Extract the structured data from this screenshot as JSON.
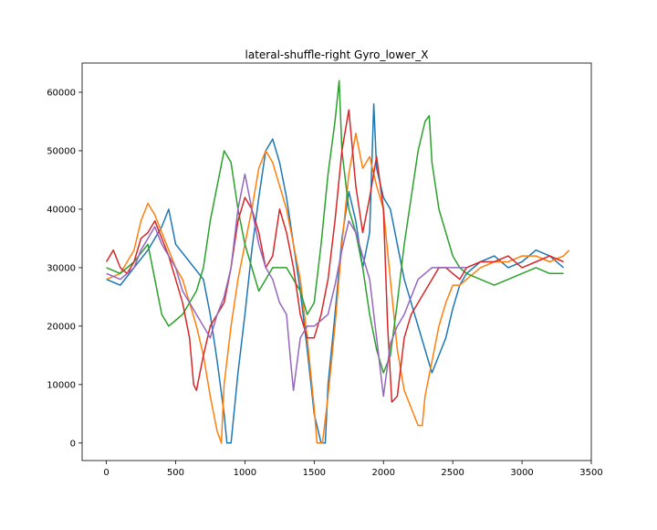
{
  "chart_data": {
    "type": "line",
    "title": "lateral-shuffle-right Gyro_lower_X",
    "xlabel": "",
    "ylabel": "",
    "xlim": [
      -175,
      3500
    ],
    "ylim": [
      -3000,
      65000
    ],
    "xticks": [
      0,
      500,
      1000,
      1500,
      2000,
      2500,
      3000,
      3500
    ],
    "yticks": [
      0,
      10000,
      20000,
      30000,
      40000,
      50000,
      60000
    ],
    "xtick_labels": [
      "0",
      "500",
      "1000",
      "1500",
      "2000",
      "2500",
      "3000",
      "3500"
    ],
    "ytick_labels": [
      "0",
      "10000",
      "20000",
      "30000",
      "40000",
      "50000",
      "60000"
    ],
    "grid": false,
    "series": [
      {
        "color": "#1f77b4",
        "x": [
          0,
          100,
          200,
          300,
          400,
          450,
          500,
          600,
          700,
          750,
          800,
          850,
          870,
          900,
          950,
          1000,
          1050,
          1100,
          1150,
          1200,
          1250,
          1300,
          1350,
          1400,
          1450,
          1500,
          1550,
          1580,
          1600,
          1650,
          1700,
          1750,
          1800,
          1850,
          1900,
          1930,
          1950,
          2000,
          2050,
          2100,
          2150,
          2200,
          2250,
          2300,
          2350,
          2400,
          2450,
          2500,
          2550,
          2600,
          2700,
          2800,
          2900,
          3000,
          3100,
          3200,
          3300
        ],
        "y": [
          28000,
          27000,
          30000,
          33000,
          37000,
          40000,
          34000,
          31000,
          28000,
          22000,
          14000,
          5000,
          0,
          0,
          12000,
          22000,
          33000,
          42000,
          50000,
          52000,
          48000,
          42000,
          34000,
          26000,
          16000,
          5000,
          0,
          0,
          10000,
          22000,
          35000,
          43000,
          38000,
          30000,
          36000,
          58000,
          47000,
          42000,
          40000,
          34000,
          28000,
          24000,
          20000,
          16000,
          12000,
          15000,
          18000,
          23000,
          27000,
          29000,
          31000,
          32000,
          30000,
          31000,
          33000,
          32000,
          30000
        ]
      },
      {
        "color": "#ff7f0e",
        "x": [
          0,
          100,
          200,
          250,
          300,
          350,
          400,
          450,
          500,
          550,
          600,
          650,
          700,
          750,
          800,
          830,
          850,
          900,
          950,
          1000,
          1050,
          1100,
          1150,
          1200,
          1250,
          1300,
          1350,
          1400,
          1450,
          1500,
          1520,
          1560,
          1600,
          1650,
          1700,
          1750,
          1800,
          1850,
          1900,
          1950,
          2000,
          2050,
          2100,
          2150,
          2200,
          2250,
          2280,
          2300,
          2350,
          2400,
          2450,
          2500,
          2550,
          2600,
          2700,
          2800,
          2900,
          3000,
          3100,
          3200,
          3300,
          3340
        ],
        "y": [
          28000,
          29000,
          33000,
          38000,
          41000,
          39000,
          36000,
          33000,
          30000,
          28000,
          24000,
          20000,
          15000,
          8000,
          2000,
          0,
          10000,
          20000,
          28000,
          34000,
          40000,
          47000,
          50000,
          48000,
          44000,
          40000,
          34000,
          28000,
          18000,
          6000,
          0,
          0,
          8000,
          20000,
          34000,
          46000,
          53000,
          47000,
          49000,
          44000,
          40000,
          28000,
          16000,
          9000,
          6000,
          3000,
          3000,
          8000,
          14000,
          20000,
          24000,
          27000,
          27000,
          28000,
          30000,
          31000,
          31000,
          32000,
          32000,
          31000,
          32000,
          33000
        ]
      },
      {
        "color": "#2ca02c",
        "x": [
          0,
          100,
          200,
          300,
          350,
          400,
          450,
          500,
          550,
          600,
          650,
          700,
          750,
          800,
          850,
          900,
          950,
          1000,
          1050,
          1100,
          1150,
          1200,
          1250,
          1300,
          1350,
          1400,
          1450,
          1500,
          1550,
          1600,
          1650,
          1680,
          1700,
          1750,
          1800,
          1850,
          1900,
          1950,
          2000,
          2050,
          2100,
          2150,
          2200,
          2250,
          2300,
          2330,
          2350,
          2400,
          2450,
          2500,
          2550,
          2600,
          2700,
          2800,
          2900,
          3000,
          3100,
          3200,
          3300
        ],
        "y": [
          30000,
          29000,
          31000,
          34000,
          28000,
          22000,
          20000,
          21000,
          22000,
          24000,
          26000,
          30000,
          38000,
          44000,
          50000,
          48000,
          40000,
          34000,
          30000,
          26000,
          28000,
          30000,
          30000,
          30000,
          28000,
          26000,
          22000,
          24000,
          34000,
          46000,
          55000,
          62000,
          50000,
          40000,
          36000,
          30000,
          22000,
          16000,
          12000,
          15000,
          24000,
          34000,
          42000,
          50000,
          55000,
          56000,
          48000,
          40000,
          36000,
          32000,
          30000,
          29000,
          28000,
          27000,
          28000,
          29000,
          30000,
          29000,
          29000
        ]
      },
      {
        "color": "#d62728",
        "x": [
          0,
          50,
          100,
          150,
          200,
          250,
          300,
          350,
          400,
          450,
          500,
          550,
          600,
          630,
          650,
          700,
          750,
          800,
          850,
          900,
          950,
          1000,
          1050,
          1100,
          1150,
          1200,
          1250,
          1300,
          1350,
          1400,
          1450,
          1500,
          1550,
          1600,
          1650,
          1700,
          1750,
          1800,
          1850,
          1900,
          1950,
          2000,
          2030,
          2060,
          2100,
          2150,
          2200,
          2250,
          2300,
          2350,
          2400,
          2450,
          2500,
          2550,
          2600,
          2700,
          2800,
          2900,
          3000,
          3100,
          3200,
          3300
        ],
        "y": [
          31000,
          33000,
          30000,
          29000,
          31000,
          35000,
          36000,
          38000,
          35000,
          32000,
          28000,
          24000,
          18000,
          10000,
          9000,
          15000,
          20000,
          22000,
          24000,
          30000,
          38000,
          42000,
          40000,
          36000,
          30000,
          32000,
          40000,
          36000,
          30000,
          22000,
          18000,
          18000,
          22000,
          28000,
          38000,
          50000,
          57000,
          44000,
          36000,
          42000,
          49000,
          40000,
          20000,
          7000,
          8000,
          18000,
          22000,
          24000,
          26000,
          28000,
          30000,
          30000,
          29000,
          28000,
          30000,
          31000,
          31000,
          32000,
          30000,
          31000,
          32000,
          31000
        ]
      },
      {
        "color": "#9467bd",
        "x": [
          0,
          100,
          200,
          250,
          300,
          350,
          400,
          450,
          500,
          550,
          600,
          650,
          700,
          750,
          800,
          850,
          900,
          950,
          1000,
          1050,
          1100,
          1150,
          1200,
          1250,
          1300,
          1330,
          1350,
          1400,
          1450,
          1500,
          1550,
          1600,
          1650,
          1700,
          1750,
          1800,
          1850,
          1900,
          1950,
          2000,
          2050,
          2100,
          2150,
          2200,
          2250,
          2300,
          2350,
          2400,
          2450,
          2500,
          2550,
          2600
        ],
        "y": [
          29000,
          28000,
          30000,
          33000,
          35000,
          37000,
          34000,
          32000,
          30000,
          26000,
          24000,
          22000,
          20000,
          18000,
          22000,
          25000,
          30000,
          40000,
          46000,
          40000,
          34000,
          30000,
          28000,
          24000,
          22000,
          14000,
          9000,
          18000,
          20000,
          20000,
          21000,
          22000,
          27000,
          33000,
          38000,
          36000,
          32000,
          28000,
          18000,
          8000,
          17000,
          20000,
          22000,
          25000,
          28000,
          29000,
          30000,
          30000,
          30000,
          30000,
          30000,
          30000
        ]
      }
    ]
  }
}
